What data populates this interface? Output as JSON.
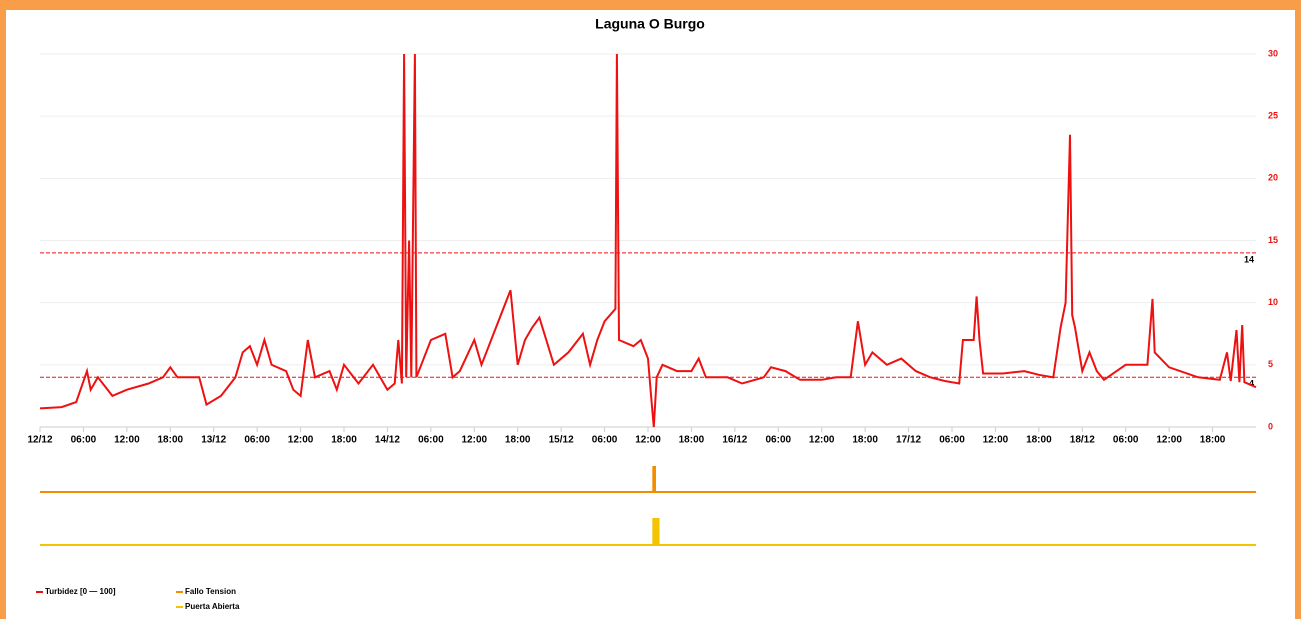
{
  "chart_data": {
    "type": "line",
    "title": "Laguna O Burgo",
    "xlim": [
      0,
      168
    ],
    "xticks": [
      {
        "value": 0,
        "label": "12/12"
      },
      {
        "value": 6,
        "label": "06:00"
      },
      {
        "value": 12,
        "label": "12:00"
      },
      {
        "value": 18,
        "label": "18:00"
      },
      {
        "value": 24,
        "label": "13/12"
      },
      {
        "value": 30,
        "label": "06:00"
      },
      {
        "value": 36,
        "label": "12:00"
      },
      {
        "value": 42,
        "label": "18:00"
      },
      {
        "value": 48,
        "label": "14/12"
      },
      {
        "value": 54,
        "label": "06:00"
      },
      {
        "value": 60,
        "label": "12:00"
      },
      {
        "value": 66,
        "label": "18:00"
      },
      {
        "value": 72,
        "label": "15/12"
      },
      {
        "value": 78,
        "label": "06:00"
      },
      {
        "value": 84,
        "label": "12:00"
      },
      {
        "value": 90,
        "label": "18:00"
      },
      {
        "value": 96,
        "label": "16/12"
      },
      {
        "value": 102,
        "label": "06:00"
      },
      {
        "value": 108,
        "label": "12:00"
      },
      {
        "value": 114,
        "label": "18:00"
      },
      {
        "value": 120,
        "label": "17/12"
      },
      {
        "value": 126,
        "label": "06:00"
      },
      {
        "value": 132,
        "label": "12:00"
      },
      {
        "value": 138,
        "label": "18:00"
      },
      {
        "value": 144,
        "label": "18/12"
      },
      {
        "value": 150,
        "label": "06:00"
      },
      {
        "value": 156,
        "label": "12:00"
      },
      {
        "value": 162,
        "label": "18:00"
      }
    ],
    "ylim": [
      0,
      30
    ],
    "yticks": [
      0,
      5,
      10,
      15,
      20,
      25,
      30
    ],
    "grid": true,
    "thresholds": [
      {
        "value": 14,
        "label": "14"
      },
      {
        "value": 4,
        "label": "4"
      }
    ],
    "series": [
      {
        "name": "Turbidez [0 — 100]",
        "color": "#ee1111",
        "x": [
          0,
          3,
          5,
          6.5,
          7,
          8,
          10,
          12,
          15,
          17,
          18,
          19,
          22,
          23,
          25,
          27,
          28,
          29,
          30,
          31,
          32,
          34,
          35,
          36,
          37,
          38,
          40,
          41,
          42,
          44,
          46,
          47,
          48,
          49,
          49.5,
          50,
          50.3,
          50.6,
          51,
          51.3,
          51.8,
          52,
          54,
          56,
          57,
          58,
          60,
          61,
          63,
          65,
          66,
          67,
          68,
          69,
          71,
          73,
          75,
          76,
          77,
          78,
          79.5,
          79.7,
          80,
          82,
          83,
          84,
          84.5,
          84.8,
          85.2,
          86,
          88,
          90,
          91,
          92,
          95,
          97,
          100,
          101,
          103,
          105,
          108,
          110,
          112,
          113,
          114,
          115,
          117,
          119,
          121,
          123,
          125,
          127,
          127.5,
          129,
          129.4,
          129.8,
          130.3,
          133,
          136,
          138,
          140,
          141,
          141.7,
          142.3,
          142.6,
          143,
          144,
          145,
          146,
          147,
          150,
          153,
          153.7,
          154,
          156,
          160,
          163,
          164,
          164.5,
          165.3,
          165.7,
          166.1,
          166.4,
          168
        ],
        "values": [
          1.5,
          1.6,
          2,
          4.5,
          3,
          4,
          2.5,
          3,
          3.5,
          4,
          4.8,
          4,
          4,
          1.8,
          2.5,
          4,
          6,
          6.5,
          5,
          7,
          5,
          4.5,
          3,
          2.5,
          7,
          4,
          4.5,
          3,
          5,
          3.5,
          5,
          4,
          3,
          3.5,
          7,
          3.5,
          30,
          4,
          15,
          4,
          30,
          4,
          7,
          7.5,
          4,
          4.5,
          7,
          5,
          8,
          11,
          5,
          7,
          8,
          8.8,
          5,
          6,
          7.5,
          5,
          7,
          8.5,
          9.5,
          30,
          7,
          6.5,
          7,
          5.5,
          2,
          0,
          4,
          5,
          4.5,
          4.5,
          5.5,
          4,
          4,
          3.5,
          4,
          4.8,
          4.5,
          3.8,
          3.8,
          4,
          4,
          8.5,
          5,
          6,
          5,
          5.5,
          4.5,
          4,
          3.7,
          3.5,
          7,
          7,
          10.5,
          7,
          4.3,
          4.3,
          4.5,
          4.2,
          4,
          8,
          10,
          23.5,
          9,
          8,
          4.5,
          6,
          4.5,
          3.8,
          5,
          5,
          10.3,
          6,
          4.8,
          4,
          3.8,
          6,
          3.7,
          7.8,
          3.6,
          8.2,
          3.6,
          3.2
        ]
      }
    ],
    "tracks": [
      {
        "name": "Fallo Tension",
        "color": "#f28c00",
        "start": 84.6,
        "end": 85.1
      },
      {
        "name": "Puerta Abierta",
        "color": "#f5c400",
        "start": 84.6,
        "end": 85.6
      }
    ]
  }
}
